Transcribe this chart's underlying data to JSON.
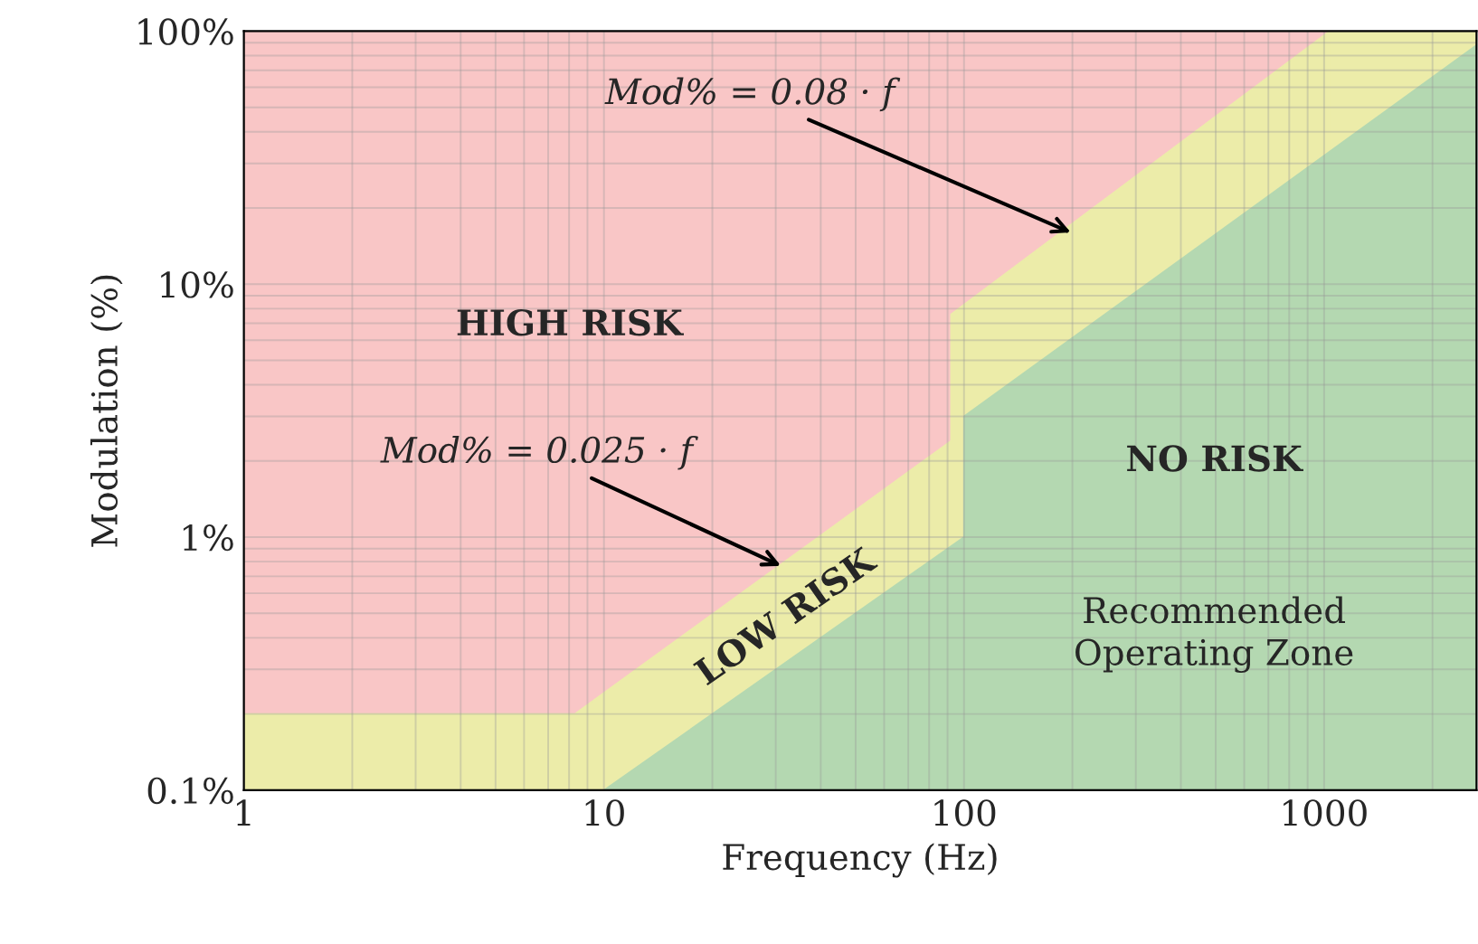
{
  "chart_data": {
    "type": "area",
    "xlabel": "Frequency (Hz)",
    "ylabel": "Modulation (%)",
    "log": "xy",
    "grid": true,
    "xlim": [
      1,
      2650
    ],
    "xticks": [
      1,
      10,
      100,
      1000
    ],
    "ylim": [
      0.1,
      100
    ],
    "bands": [
      {
        "axis": "y",
        "from": 0.1,
        "to": 100,
        "label": "HIGH RISK",
        "color": "#f9c6c6"
      },
      {
        "axis": "x",
        "from": 1035,
        "to": 2650,
        "color": "#ececa9"
      }
    ],
    "yticks": [
      {
        "value": 0.1,
        "label": "0.1%"
      },
      {
        "value": 1,
        "label": "1%"
      },
      {
        "value": 10,
        "label": "10%"
      },
      {
        "value": 100,
        "label": "100%"
      }
    ],
    "series": [
      {
        "color": "#ececa9",
        "x": [
          1,
          8.3,
          92,
          92,
          1035
        ],
        "values": [
          0.2,
          0.2,
          2.4,
          7.6,
          100
        ]
      },
      {
        "color": "#b4d8b1",
        "x": [
          10,
          100,
          100,
          2650
        ],
        "values": [
          0.1,
          1,
          3,
          88
        ]
      }
    ],
    "annotations": [
      {
        "text": "Mod% = 0.08 · f",
        "x": 198,
        "y": 16
      },
      {
        "text": "Mod% = 0.025 · f",
        "x": 31,
        "y": 0.77
      },
      "NO RISK",
      "LOW RISK",
      "Recommended\nOperating Zone"
    ]
  }
}
